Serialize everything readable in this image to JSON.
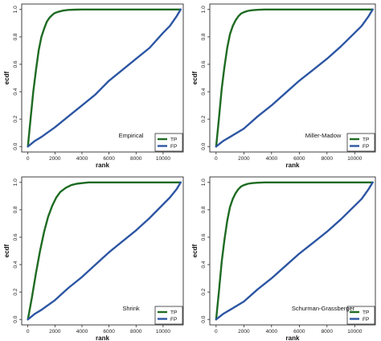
{
  "colors": {
    "tp": "#1e6b22",
    "fp": "#2d56a3",
    "axis": "#111111"
  },
  "chart_data": [
    {
      "type": "line",
      "panel_label": "Empirical",
      "xlabel": "rank",
      "ylabel": "ecdf",
      "xlim": [
        0,
        11400
      ],
      "ylim": [
        0,
        1
      ],
      "xticks": [
        "0",
        "2000",
        "4000",
        "6000",
        "8000",
        "10000"
      ],
      "yticks": [
        "0.0",
        "0.2",
        "0.4",
        "0.6",
        "0.8",
        "1.0"
      ],
      "legend_position": "bottom-right",
      "series": [
        {
          "name": "TP",
          "color": "#1e6b22",
          "x": [
            0,
            200,
            400,
            600,
            800,
            1000,
            1200,
            1400,
            1600,
            1800,
            2000,
            2300,
            2600,
            3000,
            3500,
            4000,
            11300
          ],
          "y": [
            0,
            0.2,
            0.4,
            0.56,
            0.7,
            0.8,
            0.86,
            0.91,
            0.94,
            0.96,
            0.975,
            0.985,
            0.992,
            0.997,
            0.999,
            1.0,
            1.0
          ]
        },
        {
          "name": "FP",
          "color": "#2d56a3",
          "x": [
            0,
            500,
            1000,
            2000,
            3000,
            4000,
            5000,
            6000,
            7000,
            8000,
            9000,
            10000,
            10500,
            11000,
            11300
          ],
          "y": [
            0,
            0.04,
            0.07,
            0.14,
            0.22,
            0.3,
            0.38,
            0.48,
            0.56,
            0.64,
            0.72,
            0.83,
            0.88,
            0.95,
            1.0
          ]
        }
      ]
    },
    {
      "type": "line",
      "panel_label": "Miller-Madow",
      "xlabel": "rank",
      "ylabel": "ecdf",
      "xlim": [
        0,
        11400
      ],
      "ylim": [
        0,
        1
      ],
      "xticks": [
        "0",
        "2000",
        "4000",
        "6000",
        "8000",
        "10000"
      ],
      "yticks": [
        "0.0",
        "0.2",
        "0.4",
        "0.6",
        "0.8",
        "1.0"
      ],
      "legend_position": "bottom-right",
      "series": [
        {
          "name": "TP",
          "color": "#1e6b22",
          "x": [
            0,
            200,
            400,
            600,
            800,
            1000,
            1200,
            1400,
            1600,
            1800,
            2000,
            2300,
            2600,
            3000,
            3500,
            4000,
            11300
          ],
          "y": [
            0,
            0.2,
            0.42,
            0.58,
            0.72,
            0.82,
            0.88,
            0.92,
            0.95,
            0.97,
            0.98,
            0.99,
            0.995,
            0.998,
            1.0,
            1.0,
            1.0
          ]
        },
        {
          "name": "FP",
          "color": "#2d56a3",
          "x": [
            0,
            500,
            1000,
            2000,
            3000,
            4000,
            5000,
            6000,
            7000,
            8000,
            9000,
            10000,
            10500,
            11000,
            11300
          ],
          "y": [
            0,
            0.04,
            0.07,
            0.13,
            0.22,
            0.3,
            0.39,
            0.48,
            0.56,
            0.64,
            0.73,
            0.83,
            0.88,
            0.95,
            1.0
          ]
        }
      ]
    },
    {
      "type": "line",
      "panel_label": "Shrink",
      "xlabel": "rank",
      "ylabel": "ecdf",
      "xlim": [
        0,
        11400
      ],
      "ylim": [
        0,
        1
      ],
      "xticks": [
        "0",
        "2000",
        "4000",
        "6000",
        "8000",
        "10000"
      ],
      "yticks": [
        "0.0",
        "0.2",
        "0.4",
        "0.6",
        "0.8",
        "1.0"
      ],
      "legend_position": "bottom-right",
      "series": [
        {
          "name": "TP",
          "color": "#1e6b22",
          "x": [
            0,
            300,
            600,
            900,
            1200,
            1500,
            1800,
            2100,
            2400,
            2800,
            3200,
            3600,
            4000,
            4500,
            11300
          ],
          "y": [
            0,
            0.16,
            0.34,
            0.5,
            0.64,
            0.75,
            0.83,
            0.89,
            0.93,
            0.96,
            0.98,
            0.99,
            0.995,
            1.0,
            1.0
          ]
        },
        {
          "name": "FP",
          "color": "#2d56a3",
          "x": [
            0,
            500,
            1000,
            2000,
            3000,
            4000,
            5000,
            6000,
            7000,
            8000,
            9000,
            10000,
            10500,
            11000,
            11300
          ],
          "y": [
            0,
            0.04,
            0.07,
            0.14,
            0.23,
            0.31,
            0.4,
            0.49,
            0.57,
            0.65,
            0.74,
            0.84,
            0.89,
            0.95,
            1.0
          ]
        }
      ]
    },
    {
      "type": "line",
      "panel_label": "Schurman-Grassberger",
      "xlabel": "rank",
      "ylabel": "ecdf",
      "xlim": [
        0,
        11400
      ],
      "ylim": [
        0,
        1
      ],
      "xticks": [
        "0",
        "2000",
        "4000",
        "6000",
        "8000",
        "10000"
      ],
      "yticks": [
        "0.0",
        "0.2",
        "0.4",
        "0.6",
        "0.8",
        "1.0"
      ],
      "legend_position": "bottom-right",
      "series": [
        {
          "name": "TP",
          "color": "#1e6b22",
          "x": [
            0,
            200,
            400,
            600,
            800,
            1000,
            1200,
            1400,
            1600,
            1800,
            2000,
            2300,
            2600,
            3000,
            3500,
            4000,
            11300
          ],
          "y": [
            0,
            0.2,
            0.42,
            0.58,
            0.72,
            0.82,
            0.88,
            0.92,
            0.95,
            0.97,
            0.98,
            0.99,
            0.995,
            0.998,
            1.0,
            1.0,
            1.0
          ]
        },
        {
          "name": "FP",
          "color": "#2d56a3",
          "x": [
            0,
            500,
            1000,
            2000,
            3000,
            4000,
            5000,
            6000,
            7000,
            8000,
            9000,
            10000,
            10500,
            11000,
            11300
          ],
          "y": [
            0,
            0.04,
            0.07,
            0.13,
            0.22,
            0.3,
            0.39,
            0.48,
            0.56,
            0.64,
            0.73,
            0.83,
            0.88,
            0.95,
            1.0
          ]
        }
      ]
    }
  ]
}
